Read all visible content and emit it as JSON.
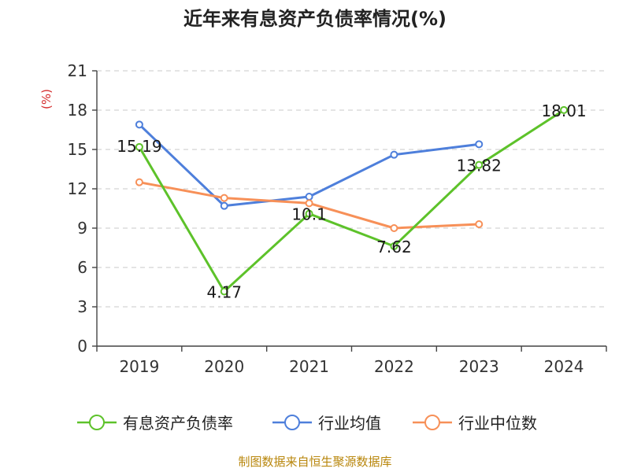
{
  "chart_data": {
    "type": "line",
    "title": "近年来有息资产负债率情况(%)",
    "ylabel": "(%)",
    "xlabel": "",
    "categories": [
      "2019",
      "2020",
      "2021",
      "2022",
      "2023",
      "2024"
    ],
    "ylim": [
      0,
      21
    ],
    "yticks": [
      0,
      3,
      6,
      9,
      12,
      15,
      18,
      21
    ],
    "grid": true,
    "legend_position": "bottom",
    "series": [
      {
        "name": "有息资产负债率",
        "color": "#5dc22a",
        "values": [
          15.19,
          4.17,
          10.1,
          7.62,
          13.82,
          18.01
        ],
        "labels": [
          "15.19",
          "4.17",
          "10.1",
          "7.62",
          "13.82",
          "18.01"
        ]
      },
      {
        "name": "行业均值",
        "color": "#4e7fdb",
        "values": [
          16.9,
          10.7,
          11.4,
          14.6,
          15.4,
          null
        ]
      },
      {
        "name": "行业中位数",
        "color": "#f79058",
        "values": [
          12.5,
          11.3,
          10.9,
          9.0,
          9.3,
          null
        ]
      }
    ],
    "source": "制图数据来自恒生聚源数据库"
  }
}
